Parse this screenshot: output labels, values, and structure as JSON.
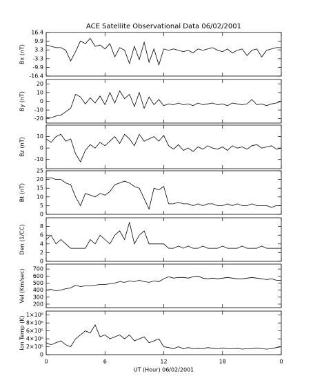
{
  "chart_data": [
    {
      "type": "line",
      "title": "ACE Satellite Observational Data   06/02/2001",
      "ylabel": "Bx (nT)",
      "color": "#000000",
      "x": [
        0,
        0.5,
        1,
        1.5,
        2,
        2.5,
        3,
        3.5,
        4,
        4.5,
        5,
        5.5,
        6,
        6.5,
        7,
        7.5,
        8,
        8.5,
        9,
        9.5,
        10,
        10.5,
        11,
        11.5,
        12,
        12.5,
        13,
        13.5,
        14,
        14.5,
        15,
        15.5,
        16,
        16.5,
        17,
        17.5,
        18,
        18.5,
        19,
        19.5,
        20,
        20.5,
        21,
        21.5,
        22,
        22.5,
        23,
        23.5,
        24
      ],
      "values": [
        7,
        6,
        5,
        5,
        3,
        -5,
        2,
        10,
        8,
        12,
        6,
        7,
        4,
        8,
        -2,
        5,
        3,
        -7,
        6,
        -4,
        9,
        -6,
        4,
        -8,
        4,
        3,
        4,
        3,
        2,
        3,
        1,
        4,
        3,
        4,
        5,
        3,
        2,
        4,
        1,
        3,
        4,
        -1,
        3,
        4,
        -2,
        3,
        4,
        5,
        5
      ],
      "xlim": [
        0,
        24
      ],
      "xticks": [
        0,
        6,
        12,
        18,
        {
          "value": 24,
          "label": "0"
        }
      ],
      "ylim": [
        -16.4,
        16.4
      ],
      "yticks": [
        16.4,
        9.9,
        3.3,
        -3.3,
        -9.9,
        -16.4
      ]
    },
    {
      "type": "line",
      "ylabel": "By (nT)",
      "color": "#000000",
      "x": [
        0,
        0.5,
        1,
        1.5,
        2,
        2.5,
        3,
        3.5,
        4,
        4.5,
        5,
        5.5,
        6,
        6.5,
        7,
        7.5,
        8,
        8.5,
        9,
        9.5,
        10,
        10.5,
        11,
        11.5,
        12,
        12.5,
        13,
        13.5,
        14,
        14.5,
        15,
        15.5,
        16,
        16.5,
        17,
        17.5,
        18,
        18.5,
        19,
        19.5,
        20,
        20.5,
        21,
        21.5,
        22,
        22.5,
        23,
        23.5,
        24
      ],
      "values": [
        -18,
        -19,
        -17,
        -16,
        -12,
        -8,
        8,
        5,
        -3,
        4,
        -2,
        6,
        -4,
        10,
        -2,
        12,
        3,
        8,
        -6,
        10,
        -8,
        5,
        -4,
        2,
        -5,
        -3,
        -4,
        -2,
        -4,
        -3,
        -5,
        -2,
        -4,
        -3,
        -2,
        -4,
        -3,
        -5,
        -2,
        -3,
        -4,
        -3,
        2,
        -4,
        -3,
        -5,
        -3,
        -2,
        0
      ],
      "xlim": [
        0,
        24
      ],
      "xticks": [
        0,
        6,
        12,
        18,
        {
          "value": 24,
          "label": "0"
        }
      ],
      "ylim": [
        -25,
        25
      ],
      "yticks": [
        20,
        10,
        0,
        -10,
        -20
      ]
    },
    {
      "type": "line",
      "ylabel": "Bz (nT)",
      "color": "#000000",
      "x": [
        0,
        0.5,
        1,
        1.5,
        2,
        2.5,
        3,
        3.5,
        4,
        4.5,
        5,
        5.5,
        6,
        6.5,
        7,
        7.5,
        8,
        8.5,
        9,
        9.5,
        10,
        10.5,
        11,
        11.5,
        12,
        12.5,
        13,
        13.5,
        14,
        14.5,
        15,
        15.5,
        16,
        16.5,
        17,
        17.5,
        18,
        18.5,
        19,
        19.5,
        20,
        20.5,
        21,
        21.5,
        22,
        22.5,
        23,
        23.5,
        24
      ],
      "values": [
        8,
        5,
        10,
        12,
        6,
        8,
        -5,
        -12,
        -2,
        3,
        0,
        5,
        2,
        6,
        10,
        4,
        12,
        8,
        2,
        12,
        6,
        8,
        10,
        6,
        11,
        2,
        -1,
        3,
        -2,
        0,
        -3,
        1,
        -1,
        2,
        0,
        -1,
        1,
        -2,
        2,
        0,
        1,
        -1,
        2,
        3,
        0,
        1,
        2,
        -1,
        0
      ],
      "xlim": [
        0,
        24
      ],
      "xticks": [
        0,
        6,
        12,
        18,
        {
          "value": 24,
          "label": "0"
        }
      ],
      "ylim": [
        -18,
        20
      ],
      "yticks": [
        10,
        0,
        -10
      ]
    },
    {
      "type": "line",
      "ylabel": "Bt (nT)",
      "color": "#000000",
      "x": [
        0,
        0.5,
        1,
        1.5,
        2,
        2.5,
        3,
        3.5,
        4,
        4.5,
        5,
        5.5,
        6,
        6.5,
        7,
        7.5,
        8,
        8.5,
        9,
        9.5,
        10,
        10.5,
        11,
        11.5,
        12,
        12.5,
        13,
        13.5,
        14,
        14.5,
        15,
        15.5,
        16,
        16.5,
        17,
        17.5,
        18,
        18.5,
        19,
        19.5,
        20,
        20.5,
        21,
        21.5,
        22,
        22.5,
        23,
        23.5,
        24
      ],
      "values": [
        21,
        21,
        20,
        20,
        18,
        17,
        10,
        5,
        12,
        11,
        10,
        12,
        11,
        13,
        17,
        18,
        19,
        18,
        16,
        15,
        9,
        3,
        15,
        14,
        16,
        6,
        6,
        7,
        6,
        6,
        5,
        6,
        5,
        6,
        6,
        5,
        5,
        6,
        5,
        6,
        5,
        5,
        6,
        5,
        5,
        5,
        4,
        5,
        5
      ],
      "xlim": [
        0,
        24
      ],
      "xticks": [
        0,
        6,
        12,
        18,
        {
          "value": 24,
          "label": "0"
        }
      ],
      "ylim": [
        0,
        25
      ],
      "yticks": [
        25,
        20,
        15,
        10,
        5,
        0
      ]
    },
    {
      "type": "line",
      "ylabel": "Den (1/CC)",
      "color": "#000000",
      "x": [
        0,
        0.5,
        1,
        1.5,
        2,
        2.5,
        3,
        3.5,
        4,
        4.5,
        5,
        5.5,
        6,
        6.5,
        7,
        7.5,
        8,
        8.5,
        9,
        9.5,
        10,
        10.5,
        11,
        11.5,
        12,
        12.5,
        13,
        13.5,
        14,
        14.5,
        15,
        15.5,
        16,
        16.5,
        17,
        17.5,
        18,
        18.5,
        19,
        19.5,
        20,
        20.5,
        21,
        21.5,
        22,
        22.5,
        23,
        23.5,
        24
      ],
      "values": [
        5,
        6,
        4,
        5,
        4,
        3,
        3,
        3,
        3,
        5,
        4,
        6,
        5,
        4,
        6,
        7,
        5,
        9,
        4,
        6,
        7,
        4,
        4,
        4,
        4,
        3,
        3,
        3.5,
        3,
        3.5,
        3,
        3,
        3.5,
        3,
        3,
        3,
        3.5,
        3,
        3,
        3,
        3.5,
        3,
        3,
        3,
        3.5,
        3,
        3,
        3,
        3
      ],
      "xlim": [
        0,
        24
      ],
      "xticks": [
        0,
        6,
        12,
        18,
        {
          "value": 24,
          "label": "0"
        }
      ],
      "ylim": [
        0,
        10
      ],
      "yticks": [
        8,
        6,
        4,
        2,
        0
      ]
    },
    {
      "type": "line",
      "ylabel": "Vel (Km/sec)",
      "color": "#000000",
      "x": [
        0,
        0.5,
        1,
        1.5,
        2,
        2.5,
        3,
        3.5,
        4,
        4.5,
        5,
        5.5,
        6,
        6.5,
        7,
        7.5,
        8,
        8.5,
        9,
        9.5,
        10,
        10.5,
        11,
        11.5,
        12,
        12.5,
        13,
        13.5,
        14,
        14.5,
        15,
        15.5,
        16,
        16.5,
        17,
        17.5,
        18,
        18.5,
        19,
        19.5,
        20,
        20.5,
        21,
        21.5,
        22,
        22.5,
        23,
        23.5,
        24
      ],
      "values": [
        400,
        410,
        390,
        400,
        420,
        430,
        470,
        450,
        460,
        460,
        470,
        480,
        480,
        490,
        500,
        520,
        510,
        530,
        520,
        540,
        520,
        510,
        530,
        520,
        560,
        590,
        570,
        580,
        580,
        570,
        590,
        600,
        570,
        560,
        570,
        560,
        570,
        580,
        570,
        560,
        560,
        570,
        580,
        570,
        560,
        550,
        560,
        540,
        540
      ],
      "xlim": [
        0,
        24
      ],
      "xticks": [
        0,
        6,
        12,
        18,
        {
          "value": 24,
          "label": "0"
        }
      ],
      "ylim": [
        150,
        770
      ],
      "yticks": [
        700,
        600,
        500,
        400,
        300,
        200
      ]
    },
    {
      "type": "line",
      "ylabel": "Ion Temp (K)",
      "xlabel": "UT (Hour)  06/02/2001",
      "color": "#000000",
      "x": [
        0,
        0.5,
        1,
        1.5,
        2,
        2.5,
        3,
        3.5,
        4,
        4.5,
        5,
        5.5,
        6,
        6.5,
        7,
        7.5,
        8,
        8.5,
        9,
        9.5,
        10,
        10.5,
        11,
        11.5,
        12,
        12.5,
        13,
        13.5,
        14,
        14.5,
        15,
        15.5,
        16,
        16.5,
        17,
        17.5,
        18,
        18.5,
        19,
        19.5,
        20,
        20.5,
        21,
        21.5,
        22,
        22.5,
        23,
        23.5,
        24
      ],
      "values": [
        300000,
        250000,
        300000,
        350000,
        250000,
        200000,
        400000,
        500000,
        600000,
        550000,
        750000,
        450000,
        500000,
        400000,
        450000,
        500000,
        400000,
        500000,
        350000,
        400000,
        450000,
        300000,
        350000,
        400000,
        200000,
        180000,
        150000,
        200000,
        150000,
        180000,
        150000,
        160000,
        150000,
        180000,
        160000,
        150000,
        170000,
        150000,
        150000,
        160000,
        140000,
        150000,
        150000,
        170000,
        150000,
        140000,
        150000,
        180000,
        200000
      ],
      "xlim": [
        0,
        24
      ],
      "xticks": [
        0,
        6,
        12,
        18,
        {
          "value": 24,
          "label": "0"
        }
      ],
      "ylim": [
        0,
        1100000
      ],
      "yticks": [
        {
          "value": 1000000,
          "label": "1×10⁶"
        },
        {
          "value": 800000,
          "label": "8×10⁵"
        },
        {
          "value": 600000,
          "label": "6×10⁵"
        },
        {
          "value": 400000,
          "label": "4×10⁵"
        },
        {
          "value": 200000,
          "label": "2×10⁵"
        },
        0
      ]
    }
  ]
}
